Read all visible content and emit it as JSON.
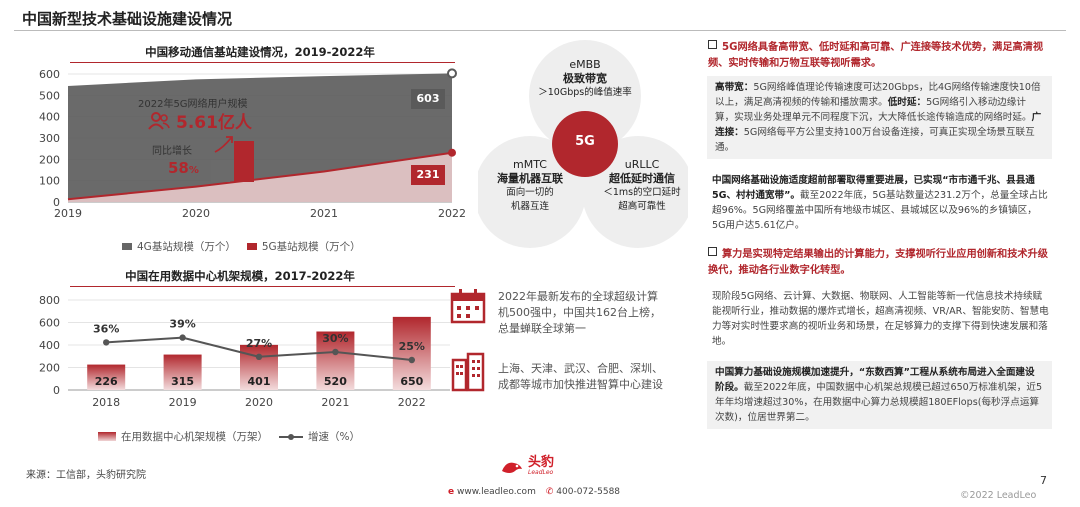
{
  "page_title": "中国新型技术基础设施建设情况",
  "chart1": {
    "title": "中国移动通信基站建设情况，2019-2022年",
    "callout_label": "2022年5G网络用户规模",
    "callout_value": "5.61亿人",
    "growth_label": "同比增长",
    "growth_value": "58",
    "growth_unit": "%",
    "legend_4g": "4G基站规模（万个）",
    "legend_5g": "5G基站规模（万个）",
    "label_4g_2022": "603",
    "label_5g_2022": "231"
  },
  "chart_data": [
    {
      "type": "area",
      "title": "中国移动通信基站建设情况，2019-2022年",
      "x": [
        2019,
        2020,
        2021,
        2022
      ],
      "series": [
        {
          "name": "4G基站规模（万个）",
          "values": [
            544,
            575,
            590,
            603
          ]
        },
        {
          "name": "5G基站规模（万个）",
          "values": [
            13,
            72,
            143,
            231
          ]
        }
      ],
      "ylim": [
        0,
        600
      ],
      "yticks": [
        0,
        100,
        200,
        300,
        400,
        500,
        600
      ],
      "legend": "bottom"
    },
    {
      "type": "bar",
      "title": "中国在用数据中心机架规模，2017-2022年",
      "categories": [
        "2018",
        "2019",
        "2020",
        "2021",
        "2022"
      ],
      "series": [
        {
          "name": "在用数据中心机架规模（万架）",
          "values": [
            226,
            315,
            401,
            520,
            650
          ]
        },
        {
          "name": "增速（%）",
          "values": [
            36,
            39,
            27,
            30,
            25
          ],
          "type": "line"
        }
      ],
      "ylim": [
        0,
        800
      ],
      "yticks": [
        0,
        200,
        400,
        600,
        800
      ],
      "legend": "bottom"
    }
  ],
  "chart2": {
    "title": "中国在用数据中心机架规模，2017-2022年",
    "legend_bar": "在用数据中心机架规模（万架）",
    "legend_line": "增速（%）"
  },
  "venn": {
    "center": "5G",
    "embb_title": "eMBB",
    "embb_name": "极致带宽",
    "embb_desc": "＞10Gbps的峰值速率",
    "mmtc_title": "mMTC",
    "mmtc_name": "海量机器互联",
    "mmtc_desc1": "面向一切的",
    "mmtc_desc2": "机器互连",
    "urllc_title": "uRLLC",
    "urllc_name": "超低延时通信",
    "urllc_desc1": "＜1ms的空口延时",
    "urllc_desc2": "超高可靠性"
  },
  "facts": {
    "fact1_l1": "2022年最新发布的全球超级计算",
    "fact1_l2": "机500强中，中国共162台上榜，",
    "fact1_l3": "总量蝉联全球第一",
    "fact2_l1": "上海、天津、武汉、合肥、深圳、",
    "fact2_l2": "成都等城市加快推进智算中心建设"
  },
  "right": {
    "b1_head": "5G网络具备高带宽、低时延和高可靠、广连接等技术优势，满足高清视频、实时传输和万物互联等视听需求。",
    "p1_k1": "高带宽：",
    "p1_t1": "5G网络峰值理论传输速度可达20Gbps，比4G网络传输速度快10倍以上，满足高清视频的传输和播放需求。",
    "p1_k2": "低时延：",
    "p1_t2": "5G网络引入移动边缘计算，实现业务处理单元不同程度下沉，大大降低长途传输造成的网络时延。",
    "p1_k3": "广连接：",
    "p1_t3": "5G网络每平方公里支持100万台设备连接，可真正实现全场景互联互通。",
    "p2_bold": "中国网络基础设施适度超前部署取得重要进展，已实现“市市通千兆、县县通 5G、村村通宽带”。",
    "p2_text": "截至2022年底，5G基站数量达231.2万个，总量全球占比超96%。5G网络覆盖中国所有地级市城区、县城城区以及96%的乡镇镇区，5G用户达5.61亿户。",
    "b2_head": "算力是实现特定结果输出的计算能力，支撑视听行业应用创新和技术升级换代，推动各行业数字化转型。",
    "p3_text": "现阶段5G网络、云计算、大数据、物联网、人工智能等新一代信息技术持续赋能视听行业，推动数据的爆炸式增长，超高清视频、VR/AR、智能安防、智慧电力等对实时性要求高的视听业务和场景，在足够算力的支撑下得到快速发展和落地。",
    "p4_bold": "中国算力基础设施规模加速提升，“东数西算”工程从系统布局进入全面建设阶段。",
    "p4_text": "截至2022年底，中国数据中心机架总规模已超过650万标准机架，近5年年均增速超过30%，在用数据中心算力总规模超180EFlops(每秒浮点运算次数)，位居世界第二。"
  },
  "footer": {
    "source": "来源：工信部，头豹研究院",
    "brand": "头豹",
    "brand_en": "LeadLeo",
    "website": "www.leadleo.com",
    "phone": "400-072-5588",
    "copyright": "©2022 LeadLeo",
    "page_number": "7"
  },
  "colors": {
    "accent": "#b1272d",
    "dark_gray": "#5a5a5a",
    "light_gray": "#e6e6e6"
  }
}
